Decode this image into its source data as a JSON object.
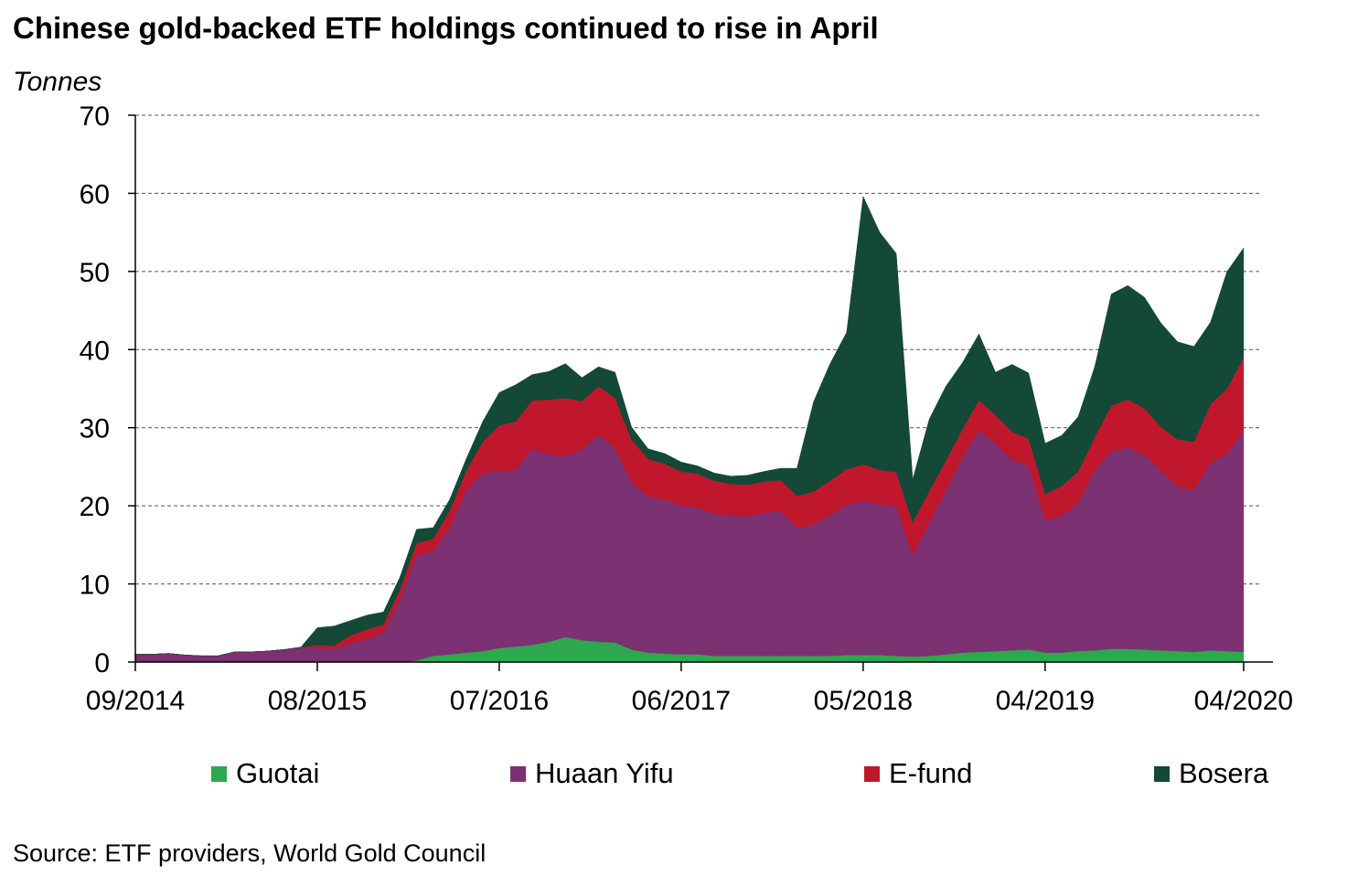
{
  "chart_data": {
    "type": "area",
    "stacked": true,
    "title": "Chinese gold-backed ETF holdings continued to rise in April",
    "ylabel": "Tonnes",
    "source": "Source: ETF providers, World Gold Council",
    "ylim": [
      0,
      70
    ],
    "yticks": [
      "0",
      "10",
      "20",
      "30",
      "40",
      "50",
      "60",
      "70"
    ],
    "xlim": [
      "2014-09",
      "2020-05"
    ],
    "xticks": [
      {
        "date": "2014-09",
        "label": "09/2014"
      },
      {
        "date": "2015-08",
        "label": "08/2015"
      },
      {
        "date": "2016-07",
        "label": "07/2016"
      },
      {
        "date": "2017-06",
        "label": "06/2017"
      },
      {
        "date": "2018-05",
        "label": "05/2018"
      },
      {
        "date": "2019-04",
        "label": "04/2019"
      },
      {
        "date": "2020-04",
        "label": "04/2020"
      }
    ],
    "grid": "horizontal-dashed",
    "legend_position": "bottom",
    "x": [
      "2014-09",
      "2014-10",
      "2014-11",
      "2014-12",
      "2015-01",
      "2015-02",
      "2015-03",
      "2015-04",
      "2015-05",
      "2015-06",
      "2015-07",
      "2015-08",
      "2015-09",
      "2015-10",
      "2015-11",
      "2015-12",
      "2016-01",
      "2016-02",
      "2016-03",
      "2016-04",
      "2016-05",
      "2016-06",
      "2016-07",
      "2016-08",
      "2016-09",
      "2016-10",
      "2016-11",
      "2016-12",
      "2017-01",
      "2017-02",
      "2017-03",
      "2017-04",
      "2017-05",
      "2017-06",
      "2017-07",
      "2017-08",
      "2017-09",
      "2017-10",
      "2017-11",
      "2017-12",
      "2018-01",
      "2018-02",
      "2018-03",
      "2018-04",
      "2018-05",
      "2018-06",
      "2018-07",
      "2018-08",
      "2018-09",
      "2018-10",
      "2018-11",
      "2018-12",
      "2019-01",
      "2019-02",
      "2019-03",
      "2019-04",
      "2019-05",
      "2019-06",
      "2019-07",
      "2019-08",
      "2019-09",
      "2019-10",
      "2019-11",
      "2019-12",
      "2020-01",
      "2020-02",
      "2020-03",
      "2020-04"
    ],
    "series": [
      {
        "name": "Guotai",
        "color": "#2ea84f",
        "values": [
          0,
          0,
          0,
          0,
          0,
          0,
          0,
          0,
          0,
          0,
          0,
          0,
          0,
          0,
          0,
          0,
          0,
          0.2,
          0.8,
          1.0,
          1.2,
          1.4,
          1.8,
          2.0,
          2.2,
          2.6,
          3.2,
          2.8,
          2.6,
          2.5,
          1.6,
          1.2,
          1.1,
          1.0,
          1.0,
          0.8,
          0.8,
          0.8,
          0.8,
          0.8,
          0.8,
          0.8,
          0.8,
          0.9,
          0.9,
          0.9,
          0.8,
          0.7,
          0.8,
          1.0,
          1.2,
          1.3,
          1.4,
          1.5,
          1.6,
          1.2,
          1.2,
          1.4,
          1.5,
          1.7,
          1.7,
          1.6,
          1.5,
          1.4,
          1.3,
          1.5,
          1.4,
          1.3
        ]
      },
      {
        "name": "Huaan Yifu",
        "color": "#7b3172",
        "values": [
          1.0,
          1.0,
          1.1,
          0.9,
          0.8,
          0.8,
          1.3,
          1.3,
          1.4,
          1.6,
          1.9,
          1.8,
          1.7,
          2.4,
          2.9,
          3.8,
          8.0,
          13.4,
          13.4,
          16.2,
          20.8,
          22.8,
          22.7,
          22.6,
          25.1,
          24.0,
          23.2,
          24.4,
          26.5,
          24.9,
          21.4,
          20.0,
          19.7,
          19.0,
          18.8,
          18.2,
          18.0,
          17.9,
          18.3,
          18.5,
          16.4,
          16.8,
          18.0,
          19.2,
          19.8,
          19.3,
          19.2,
          13.0,
          17.0,
          21.0,
          25.0,
          28.4,
          26.6,
          24.4,
          23.5,
          17.0,
          17.5,
          19.0,
          23.0,
          25.3,
          25.8,
          24.9,
          23.0,
          21.1,
          20.7,
          24.0,
          25.3,
          28.4
        ]
      },
      {
        "name": "E-fund",
        "color": "#c0172d",
        "values": [
          0,
          0,
          0,
          0,
          0,
          0,
          0,
          0,
          0,
          0,
          0,
          0.4,
          0.4,
          1.0,
          1.3,
          1.0,
          1.3,
          1.6,
          1.6,
          2.2,
          2.5,
          4.0,
          5.8,
          6.2,
          6.2,
          7.0,
          7.4,
          6.2,
          6.2,
          6.4,
          5.5,
          4.8,
          4.6,
          4.4,
          4.3,
          4.2,
          4.0,
          4.0,
          4.0,
          4.0,
          4.1,
          4.2,
          4.4,
          4.6,
          4.6,
          4.4,
          4.3,
          4.2,
          4.1,
          3.8,
          3.6,
          3.8,
          3.6,
          3.6,
          3.5,
          3.3,
          3.8,
          4.0,
          4.3,
          5.8,
          6.1,
          6.0,
          5.6,
          6.0,
          6.2,
          7.5,
          8.3,
          9.3
        ]
      },
      {
        "name": "Bosera",
        "color": "#134936",
        "values": [
          0,
          0,
          0,
          0,
          0,
          0,
          0,
          0,
          0,
          0,
          0,
          2.2,
          2.5,
          1.9,
          1.8,
          1.6,
          1.6,
          1.8,
          1.4,
          1.4,
          1.5,
          2.6,
          4.2,
          4.7,
          3.3,
          3.6,
          4.4,
          3.0,
          2.5,
          3.3,
          1.6,
          1.3,
          1.3,
          1.2,
          1.0,
          1.0,
          1.0,
          1.2,
          1.3,
          1.5,
          3.5,
          11.5,
          15.0,
          17.5,
          34.3,
          30.4,
          28.0,
          5.5,
          9.2,
          9.5,
          8.5,
          8.5,
          5.5,
          8.6,
          8.4,
          6.5,
          6.5,
          7.0,
          9.0,
          14.3,
          14.6,
          14.2,
          13.3,
          12.5,
          12.2,
          10.5,
          15.0,
          14.0
        ]
      }
    ]
  }
}
